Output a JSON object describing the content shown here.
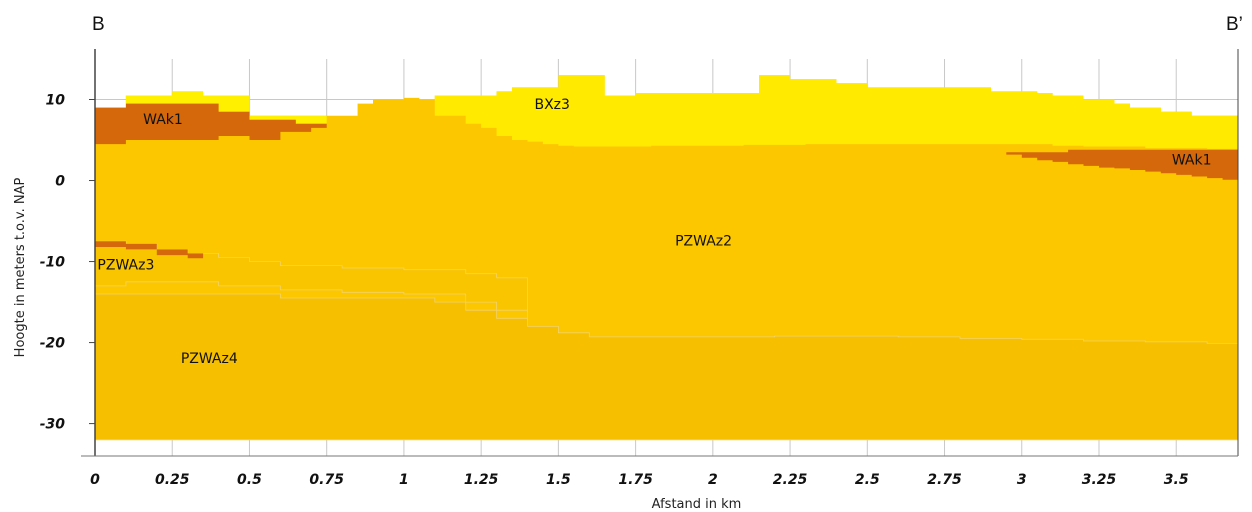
{
  "corner_labels": {
    "left": "B",
    "right": "B’"
  },
  "chart_data": {
    "type": "area",
    "title": "",
    "xlabel": "Afstand in km",
    "ylabel": "Hoogte in meters t.o.v. NAP",
    "xlim": [
      0,
      3.7
    ],
    "ylim": [
      -34,
      15
    ],
    "x_ticks": [
      "0",
      "0.25",
      "0.5",
      "0.75",
      "1",
      "1.25",
      "1.5",
      "1.75",
      "2",
      "2.25",
      "2.5",
      "2.75",
      "3",
      "3.25",
      "3.5"
    ],
    "x_tick_values": [
      0,
      0.25,
      0.5,
      0.75,
      1,
      1.25,
      1.5,
      1.75,
      2,
      2.25,
      2.5,
      2.75,
      3,
      3.25,
      3.5
    ],
    "y_ticks": [
      "10",
      "0",
      "-10",
      "-20",
      "-30"
    ],
    "y_tick_values": [
      10,
      0,
      -10,
      -20,
      -30
    ],
    "grid": true,
    "colors": {
      "PZWAz2": "#fdc700",
      "PZWAz3": "#f9c400",
      "PZWAz4": "#f6bf00",
      "WAk1": "#d4680a",
      "BXz3": "#ffea00",
      "BXz3_light": "#fff000",
      "plot_bg": "#ffffff",
      "grid": "#c8c8c8"
    },
    "surface": {
      "x": [
        0,
        0.05,
        0.1,
        0.15,
        0.2,
        0.25,
        0.3,
        0.35,
        0.4,
        0.45,
        0.5,
        0.55,
        0.6,
        0.65,
        0.7,
        0.75,
        0.8,
        0.85,
        0.9,
        0.95,
        1.0,
        1.05,
        1.1,
        1.15,
        1.2,
        1.25,
        1.3,
        1.35,
        1.4,
        1.45,
        1.5,
        1.55,
        1.6,
        1.65,
        1.7,
        1.75,
        1.8,
        1.85,
        1.9,
        1.95,
        2.0,
        2.05,
        2.1,
        2.15,
        2.2,
        2.25,
        2.3,
        2.35,
        2.4,
        2.45,
        2.5,
        2.55,
        2.6,
        2.65,
        2.7,
        2.75,
        2.8,
        2.85,
        2.9,
        2.95,
        3.0,
        3.05,
        3.1,
        3.15,
        3.2,
        3.25,
        3.3,
        3.35,
        3.4,
        3.45,
        3.5,
        3.55,
        3.6,
        3.65,
        3.7
      ],
      "y": [
        9,
        9,
        10.5,
        10.5,
        10.5,
        11,
        11,
        10.5,
        10.5,
        10.5,
        8,
        8,
        8,
        8,
        8,
        8,
        8,
        9.5,
        10,
        10,
        10.2,
        10,
        10.5,
        10.5,
        10.5,
        10.5,
        11,
        11.5,
        11.5,
        11.5,
        13,
        13,
        13,
        10.5,
        10.5,
        10.8,
        10.8,
        10.8,
        10.8,
        10.8,
        10.8,
        10.8,
        10.8,
        13,
        13,
        12.5,
        12.5,
        12.5,
        12,
        12,
        11.5,
        11.5,
        11.5,
        11.5,
        11.5,
        11.5,
        11.5,
        11.5,
        11,
        11,
        11,
        10.8,
        10.5,
        10.5,
        10,
        10,
        9.5,
        9,
        9,
        8.5,
        8.5,
        8,
        8,
        8,
        7.8
      ]
    },
    "wak1_bottom": {
      "x": [
        0,
        0.05,
        0.1,
        0.15,
        0.2,
        0.25,
        0.3,
        0.35,
        0.4,
        0.45,
        0.5,
        0.55,
        0.6,
        0.65,
        0.7,
        0.75
      ],
      "y": [
        4.5,
        4.5,
        5,
        5,
        5,
        5,
        5,
        5,
        5.5,
        5.5,
        5,
        5,
        6,
        6,
        6.5,
        6.5
      ]
    },
    "wak1_top": {
      "x": [
        0,
        0.05,
        0.1,
        0.15,
        0.2,
        0.25,
        0.3,
        0.35,
        0.4,
        0.45,
        0.5,
        0.55,
        0.6,
        0.65,
        0.7,
        0.75
      ],
      "y": [
        9,
        9,
        9.5,
        9.5,
        9.5,
        9.5,
        9.5,
        9.5,
        8.5,
        8.5,
        7.5,
        7.5,
        7.5,
        7,
        7,
        7
      ]
    },
    "wak1_right_top": {
      "x": [
        2.95,
        3.0,
        3.05,
        3.1,
        3.15,
        3.2,
        3.25,
        3.3,
        3.35,
        3.4,
        3.45,
        3.5,
        3.55,
        3.6,
        3.65,
        3.7
      ],
      "y": [
        3.5,
        3.5,
        3.5,
        3.5,
        3.8,
        3.8,
        3.8,
        3.8,
        3.8,
        3.8,
        3.8,
        3.8,
        3.8,
        3.8,
        3.8,
        3.8
      ]
    },
    "wak1_right_bottom": {
      "x": [
        2.95,
        3.0,
        3.05,
        3.1,
        3.15,
        3.2,
        3.25,
        3.3,
        3.35,
        3.4,
        3.45,
        3.5,
        3.55,
        3.6,
        3.65,
        3.7
      ],
      "y": [
        3.2,
        2.8,
        2.5,
        2.3,
        2.0,
        1.8,
        1.6,
        1.5,
        1.3,
        1.1,
        0.9,
        0.7,
        0.5,
        0.3,
        0.1,
        0
      ]
    },
    "bxz3_bottom": {
      "x": [
        1.1,
        1.2,
        1.25,
        1.3,
        1.35,
        1.4,
        1.45,
        1.5,
        1.55,
        1.6,
        1.7,
        1.8,
        1.9,
        2.0,
        2.1,
        2.2,
        2.3,
        2.4,
        2.5,
        2.6,
        2.7,
        2.8,
        2.9,
        3.0,
        3.1,
        3.2,
        3.3,
        3.4,
        3.5,
        3.6,
        3.7
      ],
      "y": [
        8,
        7,
        6.5,
        5.5,
        5,
        4.8,
        4.5,
        4.3,
        4.2,
        4.2,
        4.2,
        4.3,
        4.3,
        4.3,
        4.4,
        4.4,
        4.5,
        4.5,
        4.5,
        4.5,
        4.5,
        4.5,
        4.5,
        4.5,
        4.3,
        4.2,
        4.2,
        4.0,
        4.0,
        3.9,
        3.8
      ]
    },
    "pzwaz3_band": {
      "x": [
        0,
        0.1,
        0.2,
        0.3,
        0.4,
        0.5,
        0.6,
        0.7,
        0.8,
        0.9,
        1.0,
        1.1,
        1.2,
        1.3,
        1.4
      ],
      "top": [
        -7.5,
        -7.8,
        -8.5,
        -9,
        -9.5,
        -10,
        -10.5,
        -10.5,
        -10.8,
        -10.8,
        -11,
        -11,
        -11.5,
        -12,
        -12.5
      ],
      "bottom": [
        -13,
        -12.5,
        -12.5,
        -12.5,
        -13,
        -13,
        -13.5,
        -13.5,
        -13.8,
        -13.8,
        -14,
        -14,
        -15,
        -16,
        -17
      ]
    },
    "pzwaz4_top": {
      "x": [
        0,
        0.3,
        0.6,
        0.9,
        1.1,
        1.2,
        1.3,
        1.4,
        1.5,
        1.6,
        1.8,
        2.0,
        2.2,
        2.4,
        2.6,
        2.8,
        3.0,
        3.2,
        3.4,
        3.6,
        3.7
      ],
      "y": [
        -14,
        -14,
        -14.5,
        -14.5,
        -15,
        -16,
        -17,
        -18,
        -18.8,
        -19.3,
        -19.3,
        -19.3,
        -19.2,
        -19.2,
        -19.3,
        -19.5,
        -19.6,
        -19.8,
        -19.9,
        -20.1,
        -20.2
      ]
    },
    "bottom_y": -32,
    "labels": [
      {
        "text": "BXz3",
        "x": 1.48,
        "y": 8.8
      },
      {
        "text": "WAk1",
        "x": 0.22,
        "y": 7
      },
      {
        "text": "WAk1",
        "x": 3.55,
        "y": 2
      },
      {
        "text": "PZWAz2",
        "x": 1.97,
        "y": -8
      },
      {
        "text": "PZWAz3",
        "x": 0.1,
        "y": -11
      },
      {
        "text": "PZWAz4",
        "x": 0.37,
        "y": -22.5
      }
    ]
  }
}
